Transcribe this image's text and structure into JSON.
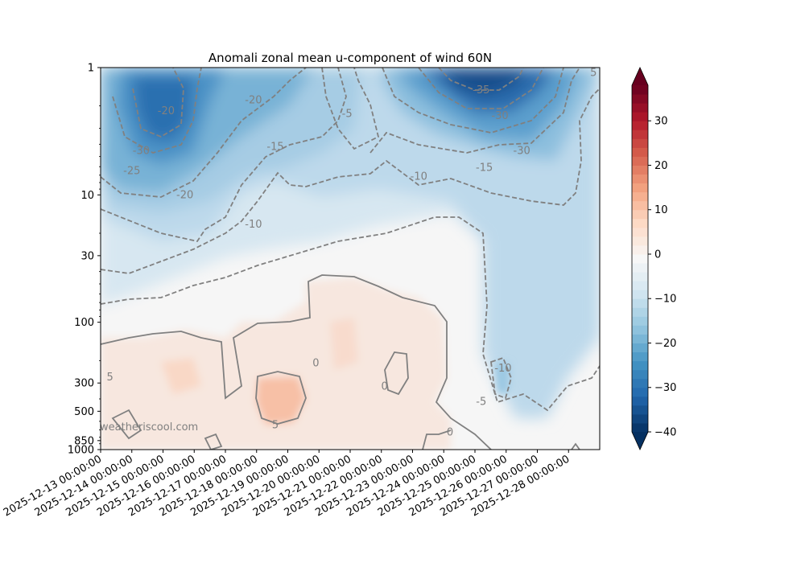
{
  "chart_data": {
    "type": "contourf",
    "title": "Anomali zonal mean u-component of wind 60N",
    "xlabel": "",
    "ylabel": "",
    "y_scale": "log",
    "y_inverted": true,
    "y_ticks": [
      1,
      10,
      30,
      100,
      300,
      500,
      850,
      1000
    ],
    "y_tick_labels": [
      "1",
      "10",
      "30",
      "100",
      "300",
      "500",
      "850",
      "1000"
    ],
    "x_start": "2025-12-13 00:00:00",
    "x_tick_labels": [
      "2025-12-13 00:00:00",
      "2025-12-14 00:00:00",
      "2025-12-15 00:00:00",
      "2025-12-16 00:00:00",
      "2025-12-17 00:00:00",
      "2025-12-18 00:00:00",
      "2025-12-19 00:00:00",
      "2025-12-20 00:00:00",
      "2025-12-21 00:00:00",
      "2025-12-22 00:00:00",
      "2025-12-23 00:00:00",
      "2025-12-24 00:00:00",
      "2025-12-25 00:00:00",
      "2025-12-26 00:00:00",
      "2025-12-27 00:00:00",
      "2025-12-28 00:00:00"
    ],
    "x_range_days": [
      0,
      16
    ],
    "colorbar": {
      "ticks": [
        30,
        20,
        10,
        0,
        -10,
        -20,
        -30,
        -40
      ],
      "tick_labels": [
        "30",
        "20",
        "10",
        "0",
        "−10",
        "−20",
        "−30",
        "−40"
      ],
      "range": [
        -40,
        38
      ],
      "extend": "both",
      "colors": [
        "#053061",
        "#2166ac",
        "#4393c3",
        "#92c5de",
        "#d1e5f0",
        "#f7f7f7",
        "#fddbc7",
        "#f4a582",
        "#d6604d",
        "#b2182b",
        "#67001f"
      ]
    },
    "contour_labels": [
      {
        "text": "-20",
        "day": 2.1,
        "p": 2.2
      },
      {
        "text": "-30",
        "day": 1.3,
        "p": 4.5
      },
      {
        "text": "-25",
        "day": 1.0,
        "p": 6.5
      },
      {
        "text": "-20",
        "day": 2.7,
        "p": 10
      },
      {
        "text": "-20",
        "day": 4.9,
        "p": 1.8
      },
      {
        "text": "-15",
        "day": 5.6,
        "p": 4.2
      },
      {
        "text": "-10",
        "day": 4.9,
        "p": 17
      },
      {
        "text": "-5",
        "day": 7.9,
        "p": 2.3
      },
      {
        "text": "-10",
        "day": 10.2,
        "p": 7.2
      },
      {
        "text": "-35",
        "day": 12.2,
        "p": 1.5
      },
      {
        "text": "-30",
        "day": 12.8,
        "p": 2.4
      },
      {
        "text": "-30",
        "day": 13.5,
        "p": 4.5
      },
      {
        "text": "-15",
        "day": 12.3,
        "p": 6.1
      },
      {
        "text": "-10",
        "day": 12.9,
        "p": 230
      },
      {
        "text": "-5",
        "day": 12.2,
        "p": 420
      },
      {
        "text": "0",
        "day": 6.9,
        "p": 210
      },
      {
        "text": "0",
        "day": 9.1,
        "p": 320
      },
      {
        "text": "0",
        "day": 11.2,
        "p": 730
      },
      {
        "text": "5",
        "day": 0.3,
        "p": 270
      },
      {
        "text": "5",
        "day": 5.6,
        "p": 640
      },
      {
        "text": "5",
        "day": 15.8,
        "p": 1.1
      }
    ]
  },
  "watermark": "weatheriscool.com"
}
